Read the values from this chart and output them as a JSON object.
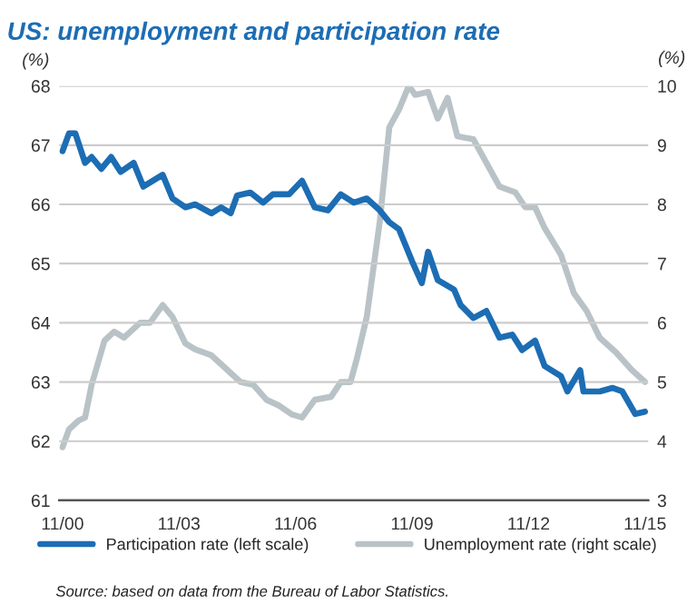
{
  "chart_data": {
    "type": "line",
    "title": "US: unemployment and participation rate",
    "ylabel": "(%)",
    "y2label": "(%)",
    "annotations": [
      "Source: based on data from the Bureau of Labor Statistics."
    ],
    "series": [
      {
        "name": "Participation rate (left scale)",
        "color": "#1c6db4",
        "x": [
          "2000-11",
          "2001-01",
          "2001-03",
          "2001-06",
          "2001-08",
          "2001-11",
          "2002-02",
          "2002-05",
          "2002-09",
          "2002-12",
          "2003-06",
          "2003-09",
          "2004-01",
          "2004-04",
          "2004-09",
          "2004-12",
          "2005-03",
          "2005-05",
          "2005-09",
          "2006-01",
          "2006-04",
          "2006-09",
          "2007-01",
          "2007-05",
          "2007-09",
          "2008-01",
          "2008-05",
          "2008-09",
          "2009-01",
          "2009-04",
          "2009-07",
          "2009-11",
          "2010-02",
          "2010-04",
          "2010-07",
          "2010-12",
          "2011-02",
          "2011-06",
          "2011-10",
          "2012-02",
          "2012-06",
          "2012-09",
          "2013-01",
          "2013-04",
          "2013-09",
          "2013-11",
          "2014-03",
          "2014-04",
          "2014-09",
          "2015-01",
          "2015-04",
          "2015-08",
          "2015-11"
        ],
        "values": [
          66.9,
          67.2,
          67.2,
          66.7,
          66.8,
          66.6,
          66.8,
          66.55,
          66.7,
          66.3,
          66.5,
          66.1,
          65.95,
          66.0,
          65.85,
          65.95,
          65.85,
          66.15,
          66.2,
          66.03,
          66.17,
          66.17,
          66.4,
          65.95,
          65.9,
          66.17,
          66.03,
          66.1,
          65.9,
          65.7,
          65.58,
          65.04,
          64.67,
          65.2,
          64.72,
          64.56,
          64.3,
          64.08,
          64.2,
          63.75,
          63.8,
          63.54,
          63.7,
          63.27,
          63.1,
          62.84,
          63.2,
          62.84,
          62.84,
          62.9,
          62.84,
          62.46,
          62.5
        ]
      },
      {
        "name": "Unemployment rate (right scale)",
        "color": "#b9c3c7",
        "axis": "y2",
        "x": [
          "2000-11",
          "2001-01",
          "2001-04",
          "2001-06",
          "2001-08",
          "2001-12",
          "2002-03",
          "2002-06",
          "2002-11",
          "2003-02",
          "2003-06",
          "2003-09",
          "2004-01",
          "2004-04",
          "2004-09",
          "2005-01",
          "2005-06",
          "2005-10",
          "2006-02",
          "2006-06",
          "2006-10",
          "2007-01",
          "2007-05",
          "2007-10",
          "2008-01",
          "2008-04",
          "2008-06",
          "2008-09",
          "2009-01",
          "2009-04",
          "2009-07",
          "2009-10",
          "2009-12",
          "2010-04",
          "2010-07",
          "2010-10",
          "2011-01",
          "2011-06",
          "2011-09",
          "2012-02",
          "2012-07",
          "2012-10",
          "2013-01",
          "2013-04",
          "2013-09",
          "2014-01",
          "2014-05",
          "2014-09",
          "2015-02",
          "2015-07",
          "2015-11"
        ],
        "values": [
          3.9,
          4.2,
          4.35,
          4.4,
          4.95,
          5.7,
          5.85,
          5.75,
          6.0,
          6.0,
          6.3,
          6.1,
          5.65,
          5.55,
          5.45,
          5.25,
          5.0,
          4.95,
          4.7,
          4.6,
          4.45,
          4.4,
          4.7,
          4.75,
          5.0,
          5.0,
          5.4,
          6.1,
          7.7,
          9.3,
          9.6,
          10.0,
          9.85,
          9.9,
          9.45,
          9.8,
          9.15,
          9.1,
          8.8,
          8.3,
          8.2,
          7.95,
          7.95,
          7.6,
          7.15,
          6.5,
          6.2,
          5.75,
          5.5,
          5.2,
          5.0
        ]
      }
    ],
    "xlim": [
      "2000-10",
      "2015-12"
    ],
    "xticks": [
      {
        "value": "2000-11",
        "label": "11/00"
      },
      {
        "value": "2003-11",
        "label": "11/03"
      },
      {
        "value": "2006-11",
        "label": "11/06"
      },
      {
        "value": "2009-11",
        "label": "11/09"
      },
      {
        "value": "2012-11",
        "label": "11/12"
      },
      {
        "value": "2015-11",
        "label": "11/15"
      }
    ],
    "ylim": [
      61,
      68
    ],
    "yticks": [
      61,
      62,
      63,
      64,
      65,
      66,
      67,
      68
    ],
    "y2lim": [
      3,
      10
    ],
    "y2ticks": [
      3,
      4,
      5,
      6,
      7,
      8,
      9,
      10
    ],
    "grid": "y",
    "legend": "bottom",
    "line_style": "solid",
    "marker": "none"
  }
}
